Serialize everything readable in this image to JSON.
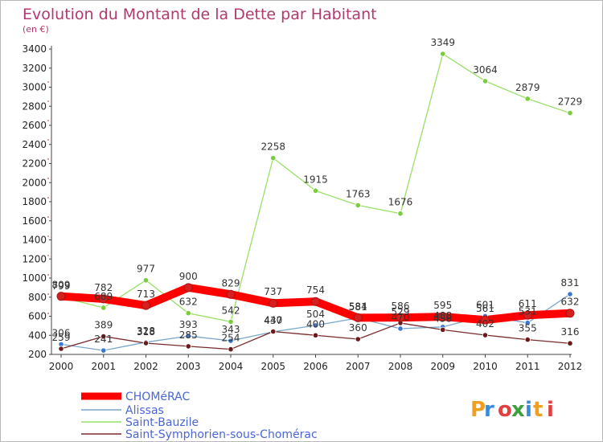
{
  "chart_data": {
    "type": "line",
    "title": "Evolution du Montant de la Dette par Habitant",
    "subtitle": "(en €)",
    "xlabel": "",
    "ylabel": "",
    "categories": [
      "2000",
      "2001",
      "2002",
      "2003",
      "2004",
      "2005",
      "2006",
      "2007",
      "2008",
      "2009",
      "2010",
      "2011",
      "2012"
    ],
    "ylim": [
      200,
      3400
    ],
    "yticks": [
      200,
      400,
      600,
      800,
      1000,
      1200,
      1400,
      1600,
      1800,
      2000,
      2200,
      2400,
      2600,
      2800,
      3000,
      3200,
      3400
    ],
    "grid": false,
    "legend_position": "bottom-left",
    "series": [
      {
        "name": "CHOMéRAC",
        "color": "#ff0000",
        "marker": "#d62020",
        "values": [
          809,
          782,
          713,
          900,
          829,
          737,
          754,
          584,
          586,
          595,
          561,
          611,
          632
        ]
      },
      {
        "name": "Alissas",
        "color": "#7aa6cc",
        "marker": "#3b78d2",
        "values": [
          306,
          241,
          328,
          393,
          343,
          437,
          504,
          581,
          470,
          488,
          601,
          531,
          831
        ]
      },
      {
        "name": "Saint-Bauzile",
        "color": "#99e066",
        "marker": "#79cc3a",
        "values": [
          799,
          689,
          977,
          632,
          542,
          2258,
          1915,
          1763,
          1676,
          3349,
          3064,
          2879,
          2729
        ]
      },
      {
        "name": "Saint-Symphorien-sous-Chomérac",
        "color": "#7a2a2a",
        "marker": "#6a1a1a",
        "values": [
          259,
          389,
          318,
          285,
          254,
          440,
          400,
          360,
          529,
          458,
          402,
          355,
          316
        ]
      }
    ]
  },
  "branding": {
    "logo_text": "Proxiti"
  }
}
